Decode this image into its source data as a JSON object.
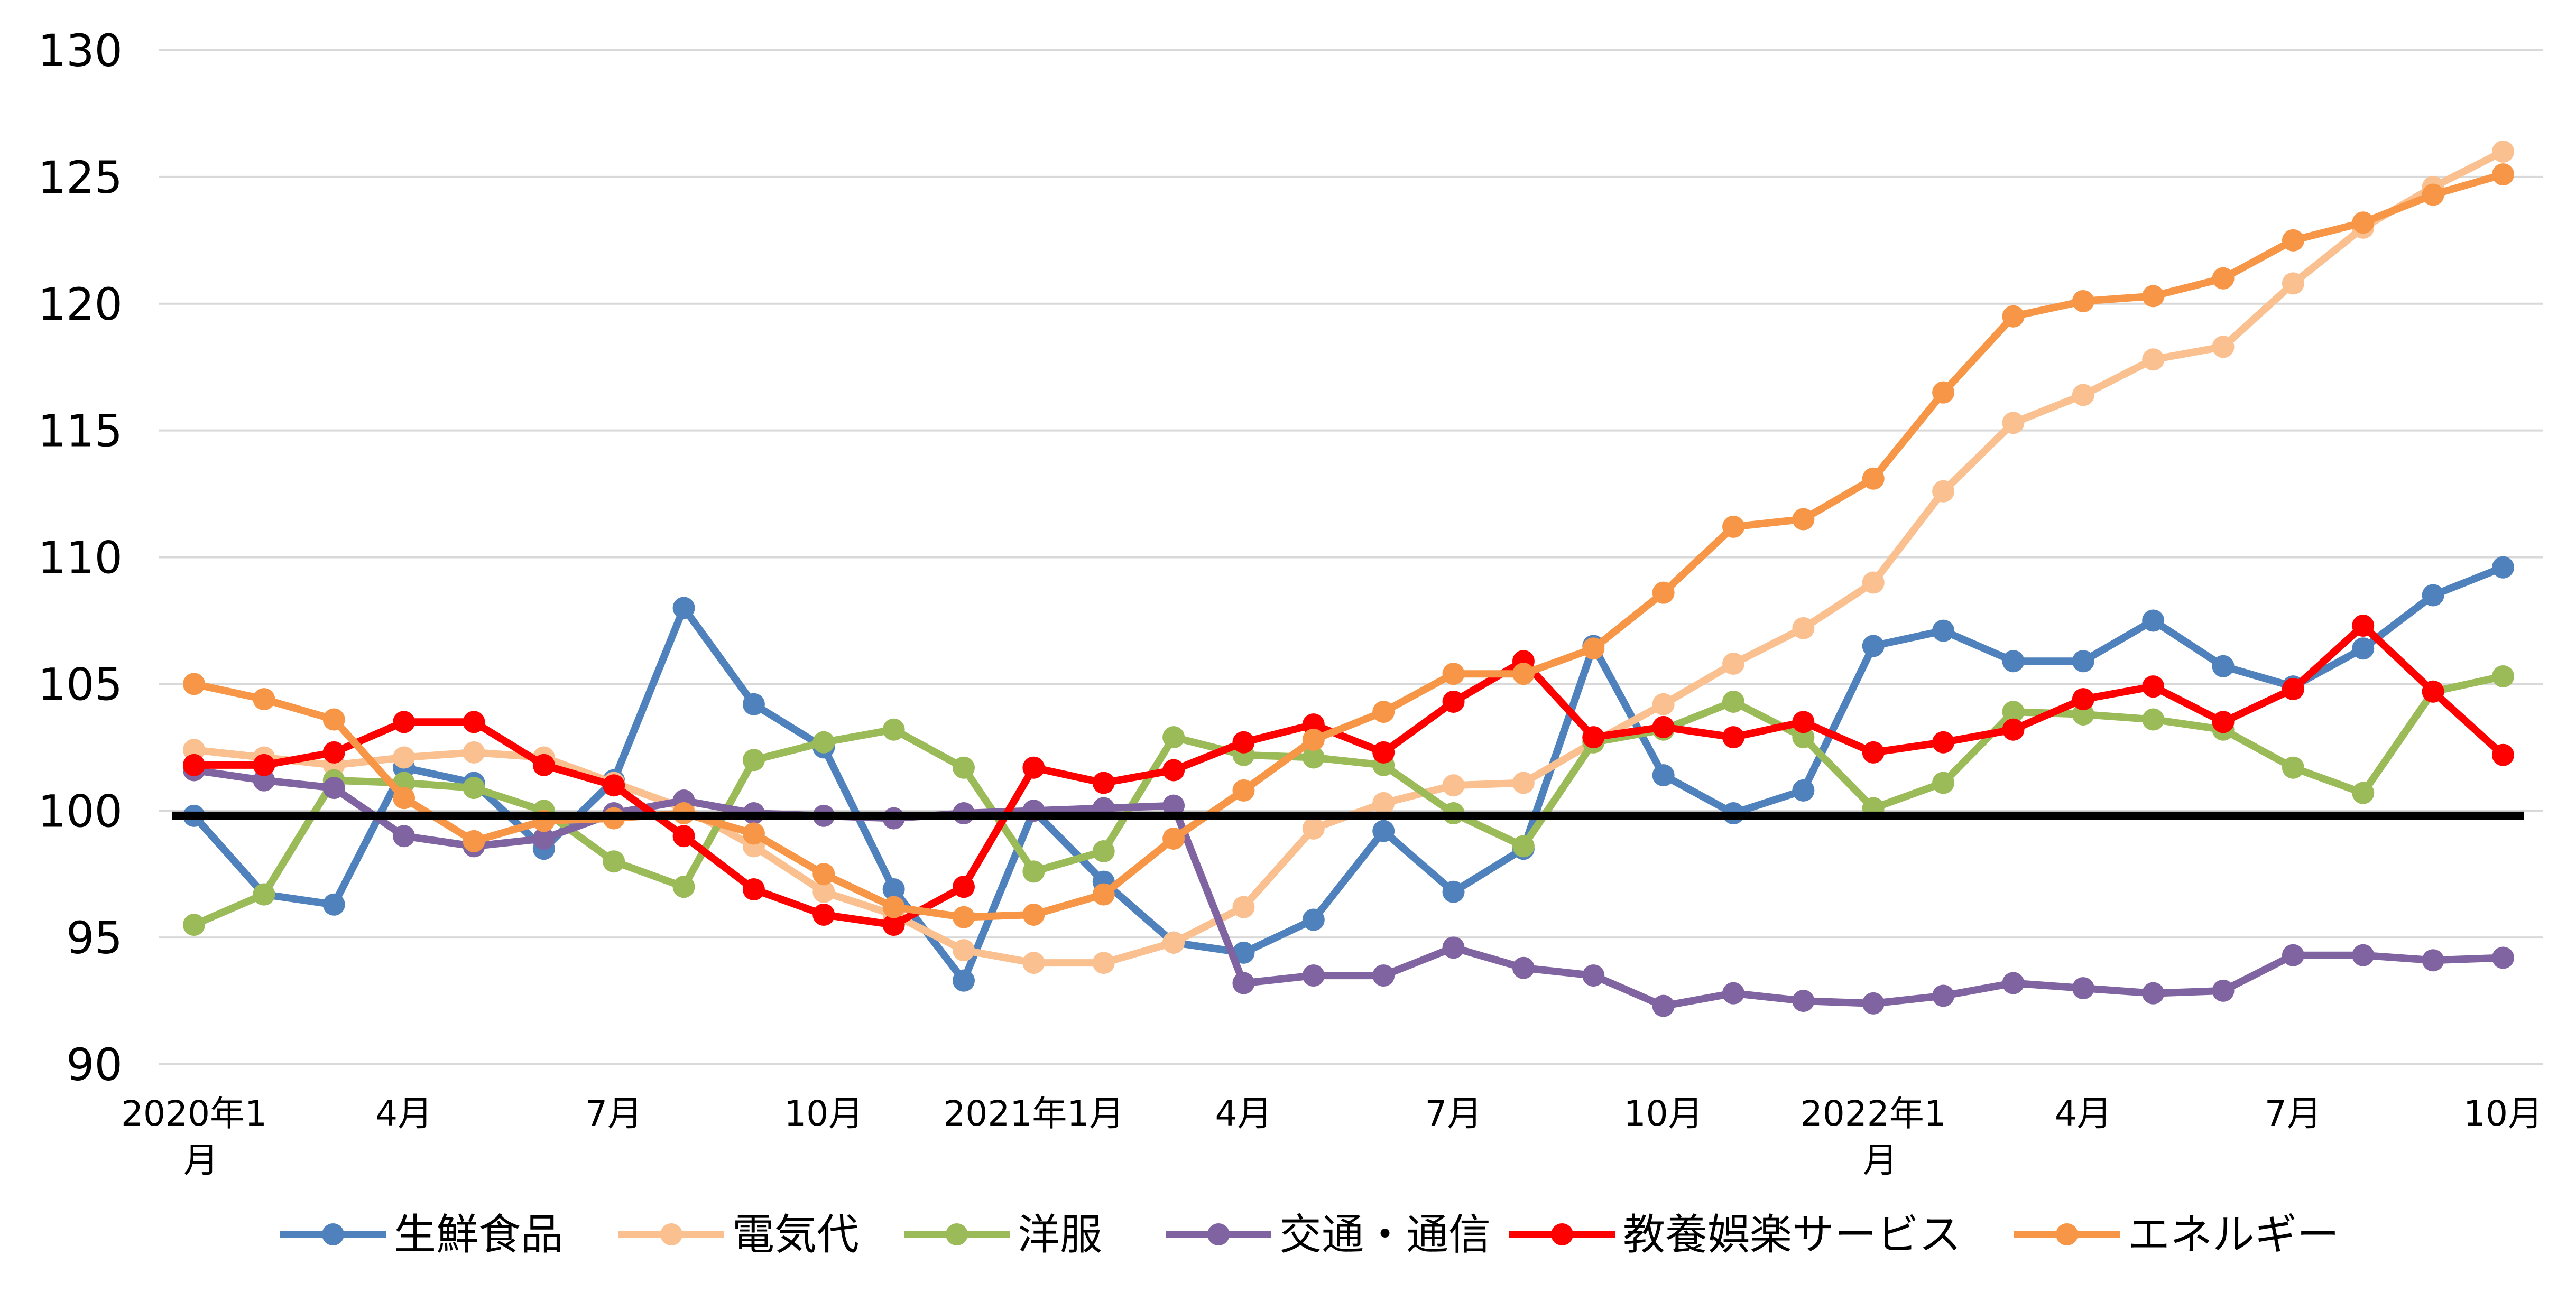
{
  "chart_data": {
    "type": "line",
    "x": [
      "2020年1月",
      "2020年2月",
      "2020年3月",
      "2020年4月",
      "2020年5月",
      "2020年6月",
      "2020年7月",
      "2020年8月",
      "2020年9月",
      "2020年10月",
      "2020年11月",
      "2020年12月",
      "2021年1月",
      "2021年2月",
      "2021年3月",
      "2021年4月",
      "2021年5月",
      "2021年6月",
      "2021年7月",
      "2021年8月",
      "2021年9月",
      "2021年10月",
      "2021年11月",
      "2021年12月",
      "2022年1月",
      "2022年2月",
      "2022年3月",
      "2022年4月",
      "2022年5月",
      "2022年6月",
      "2022年7月",
      "2022年8月",
      "2022年9月",
      "2022年10月"
    ],
    "tick_labels": [
      {
        "i": 0,
        "lines": [
          "2020年1",
          "月"
        ]
      },
      {
        "i": 3,
        "lines": [
          "4月"
        ]
      },
      {
        "i": 6,
        "lines": [
          "7月"
        ]
      },
      {
        "i": 9,
        "lines": [
          "10月"
        ]
      },
      {
        "i": 12,
        "lines": [
          "2021年1月"
        ]
      },
      {
        "i": 15,
        "lines": [
          "4月"
        ]
      },
      {
        "i": 18,
        "lines": [
          "7月"
        ]
      },
      {
        "i": 21,
        "lines": [
          "10月"
        ]
      },
      {
        "i": 24,
        "lines": [
          "2022年1",
          "月"
        ]
      },
      {
        "i": 27,
        "lines": [
          "4月"
        ]
      },
      {
        "i": 30,
        "lines": [
          "7月"
        ]
      },
      {
        "i": 33,
        "lines": [
          "10月"
        ]
      }
    ],
    "ylim": [
      90,
      130
    ],
    "yticks": [
      90,
      95,
      100,
      105,
      110,
      115,
      120,
      125,
      130
    ],
    "reference_line": 99.8,
    "grid": true,
    "legend_position": "bottom",
    "series": [
      {
        "name": "生鮮食品",
        "color": "#4f81bd",
        "values": [
          99.8,
          96.7,
          96.3,
          101.7,
          101.1,
          98.5,
          101.2,
          108.0,
          104.2,
          102.5,
          96.9,
          93.3,
          100.0,
          97.2,
          94.8,
          94.4,
          95.7,
          99.2,
          96.8,
          98.5,
          106.5,
          101.4,
          99.9,
          100.8,
          106.5,
          107.1,
          105.9,
          105.9,
          107.5,
          105.7,
          104.9,
          106.4,
          108.5,
          109.6
        ]
      },
      {
        "name": "電気代",
        "color": "#fac090",
        "values": [
          102.4,
          102.1,
          101.8,
          102.1,
          102.3,
          102.1,
          101.1,
          100.1,
          98.6,
          96.8,
          95.9,
          94.5,
          94.0,
          94.0,
          94.8,
          96.2,
          99.3,
          100.3,
          101.0,
          101.1,
          102.7,
          104.2,
          105.8,
          107.2,
          109.0,
          112.6,
          115.3,
          116.4,
          117.8,
          118.3,
          120.8,
          123.0,
          124.6,
          126.0
        ]
      },
      {
        "name": "洋服",
        "color": "#9bbb59",
        "values": [
          95.5,
          96.7,
          101.2,
          101.1,
          100.9,
          100.0,
          98.0,
          97.0,
          102.0,
          102.7,
          103.2,
          101.7,
          97.6,
          98.4,
          102.9,
          102.2,
          102.1,
          101.8,
          99.9,
          98.6,
          102.7,
          103.2,
          104.3,
          102.9,
          100.1,
          101.1,
          103.9,
          103.8,
          103.6,
          103.2,
          101.7,
          100.7,
          104.7,
          105.3
        ]
      },
      {
        "name": "交通・通信",
        "color": "#8064a2",
        "values": [
          101.6,
          101.2,
          100.9,
          99.0,
          98.6,
          98.9,
          99.9,
          100.4,
          99.9,
          99.8,
          99.7,
          99.9,
          100.0,
          100.1,
          100.2,
          93.2,
          93.5,
          93.5,
          94.6,
          93.8,
          93.5,
          92.3,
          92.8,
          92.5,
          92.4,
          92.7,
          93.2,
          93.0,
          92.8,
          92.9,
          94.3,
          94.3,
          94.1,
          94.2
        ]
      },
      {
        "name": "教養娯楽サービス",
        "color": "#ff0000",
        "values": [
          101.8,
          101.8,
          102.3,
          103.5,
          103.5,
          101.8,
          101.0,
          99.0,
          96.9,
          95.9,
          95.5,
          97.0,
          101.7,
          101.1,
          101.6,
          102.7,
          103.4,
          102.3,
          104.3,
          105.9,
          102.9,
          103.3,
          102.9,
          103.5,
          102.3,
          102.7,
          103.2,
          104.4,
          104.9,
          103.5,
          104.8,
          107.3,
          104.7,
          102.2
        ]
      },
      {
        "name": "エネルギー",
        "color": "#f79646",
        "values": [
          105.0,
          104.4,
          103.6,
          100.5,
          98.8,
          99.6,
          99.7,
          99.9,
          99.1,
          97.5,
          96.2,
          95.8,
          95.9,
          96.7,
          98.9,
          100.8,
          102.8,
          103.9,
          105.4,
          105.4,
          106.4,
          108.6,
          111.2,
          111.5,
          113.1,
          116.5,
          119.5,
          120.1,
          120.3,
          121.0,
          122.5,
          123.2,
          124.3,
          125.1
        ]
      }
    ]
  }
}
